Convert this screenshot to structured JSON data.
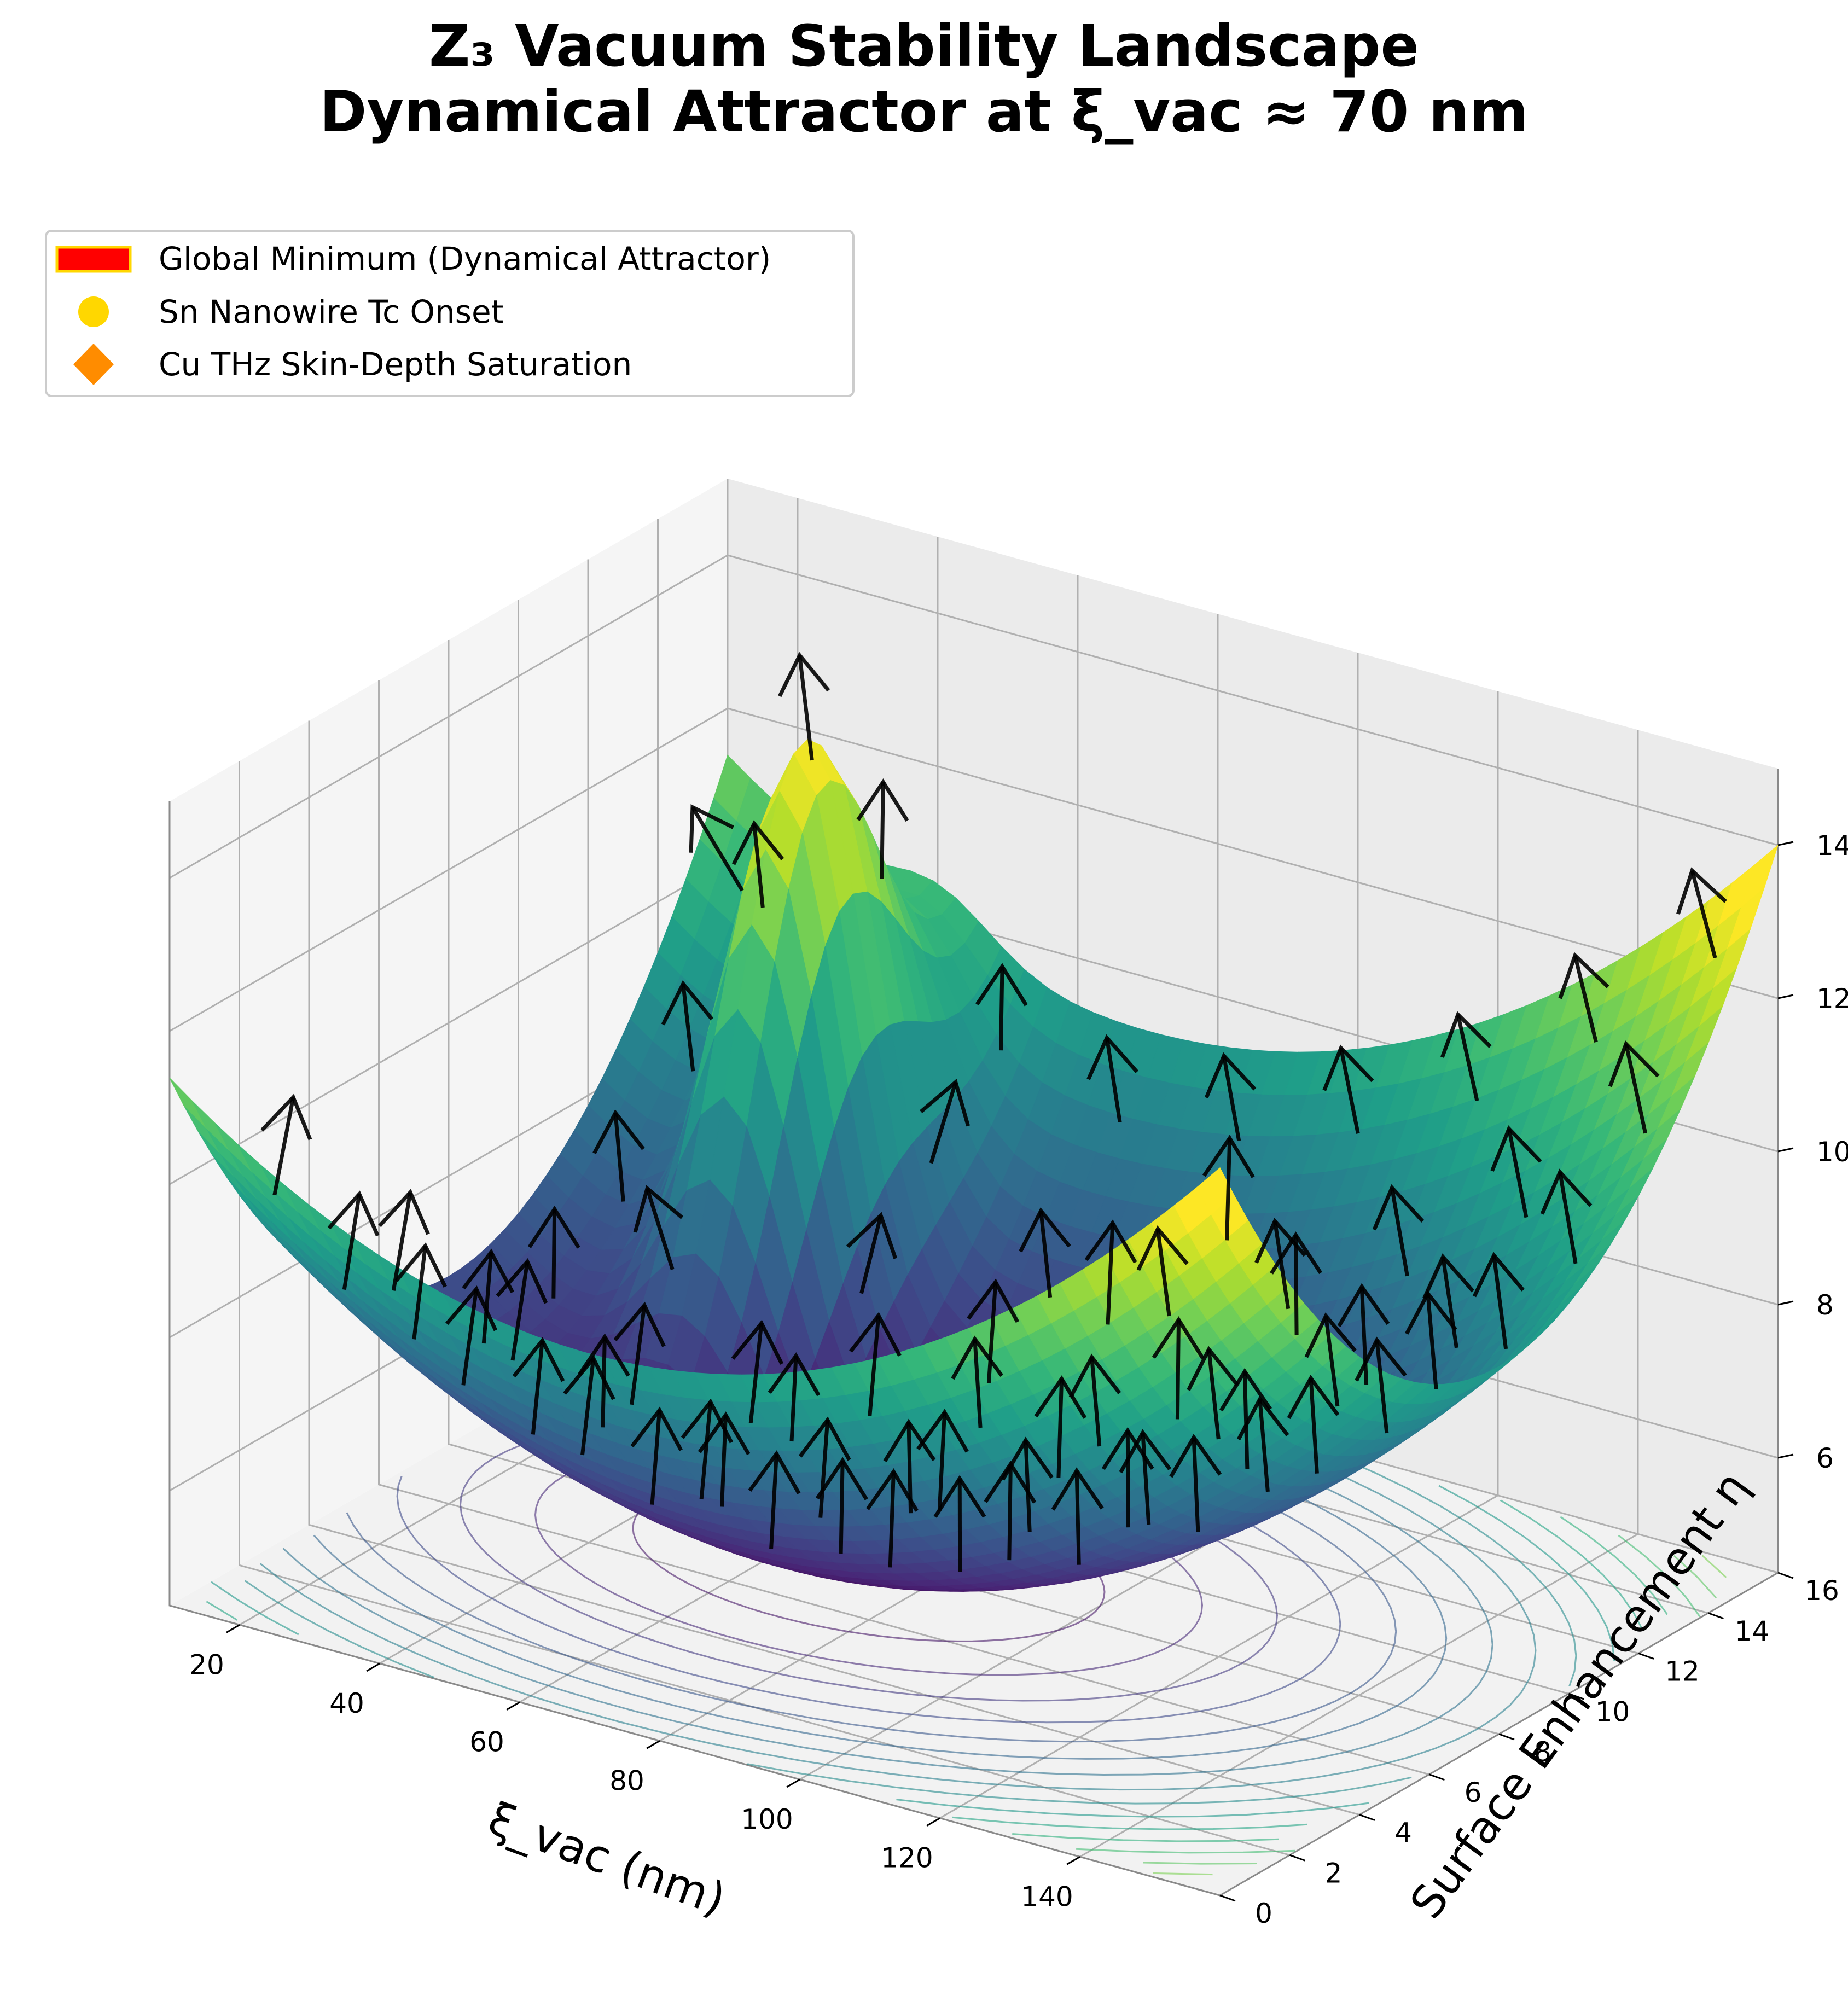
{
  "title": {
    "line1": "Z₃ Vacuum Stability Landscape",
    "line2": "Dynamical Attractor at ξ_vac ≈ 70 nm"
  },
  "legend": {
    "placement": "top-left",
    "entries": [
      {
        "label": "Global Minimum (Dynamical Attractor)",
        "marker": "rectangle",
        "color": "#ff0000",
        "edge": "#ffd700"
      },
      {
        "label": "Sn Nanowire Tc Onset",
        "marker": "circle",
        "color": "#ffd700"
      },
      {
        "label": "Cu THz Skin-Depth Saturation",
        "marker": "diamond",
        "color": "#ff8c00"
      }
    ]
  },
  "chart_data": {
    "type": "surface3d",
    "colormap": "viridis",
    "xlabel": "ξ_vac (nm)",
    "ylabel": "Surface Enhancement η",
    "zlabel": "",
    "xlim": [
      10,
      160
    ],
    "ylim": [
      0,
      16
    ],
    "zlim": [
      4.5,
      15
    ],
    "xticks": [
      20,
      40,
      60,
      80,
      100,
      120,
      140
    ],
    "yticks": [
      0,
      2,
      4,
      6,
      8,
      10,
      12,
      14,
      16
    ],
    "zticks": [
      6,
      8,
      10,
      12,
      14
    ],
    "grid": true,
    "surface": {
      "description_of_shape": "bowl with gaussian peak near ξ_vac≈40 nm, η≈12",
      "bowl_center": {
        "x": 70,
        "y": 8
      },
      "bowl_min_z": 4.6,
      "corner_max_z": 14.0,
      "peak": {
        "x": 40,
        "y": 12,
        "z": 13.2
      }
    },
    "contours_on_floor": true,
    "quiver_field": true
  }
}
